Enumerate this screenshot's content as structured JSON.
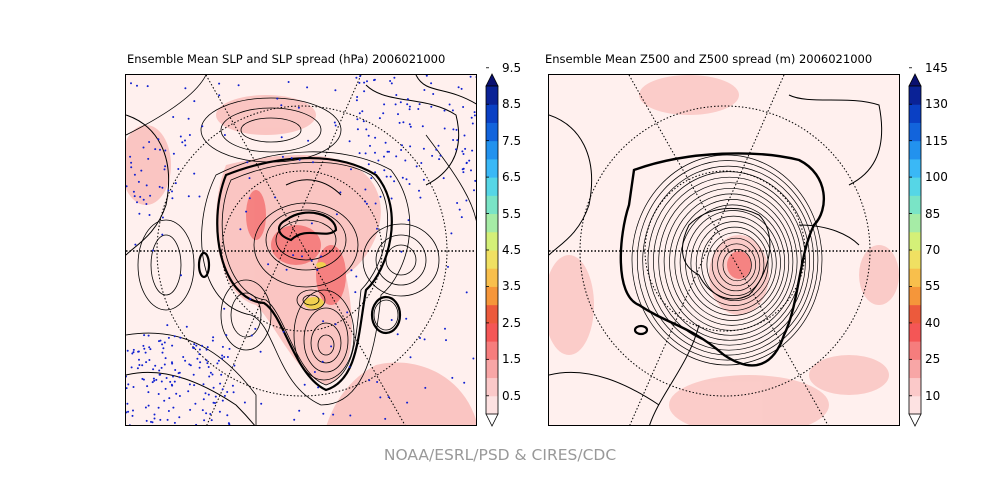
{
  "figure": {
    "footer": "NOAA/ESRL/PSD & CIRES/CDC",
    "panels": [
      {
        "title": "Ensemble Mean SLP and SLP spread (hPa) 2006021000",
        "field": "SLP",
        "colorbar_ticks": [
          "0.5",
          "1.5",
          "2.5",
          "3.5",
          "4.5",
          "5.5",
          "6.5",
          "7.5",
          "8.5",
          "9.5"
        ]
      },
      {
        "title": "Ensemble Mean Z500 and Z500 spread (m) 2006021000",
        "field": "Z500",
        "colorbar_ticks": [
          "10",
          "25",
          "40",
          "55",
          "70",
          "85",
          "100",
          "115",
          "130",
          "145"
        ]
      }
    ],
    "colorbar_colors": [
      "#fde2e2",
      "#fbc9c9",
      "#f8a6a6",
      "#f67d7d",
      "#f45656",
      "#ec5a3c",
      "#f5963a",
      "#f8bf4c",
      "#f0e062",
      "#d4f078",
      "#a6eca6",
      "#7ae4c6",
      "#56d6e6",
      "#3ab8f6",
      "#2292ee",
      "#1264dc",
      "#0a40c4",
      "#0a2296"
    ],
    "colorbar_over": "#0a1070",
    "colorbar_under": "#ffffff"
  }
}
